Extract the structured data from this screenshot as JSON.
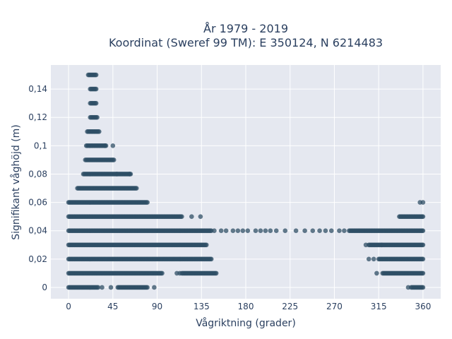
{
  "chart_data": {
    "type": "scatter",
    "title_lines": [
      "År 1979 - 2019",
      "Koordinat (Sweref 99 TM): E 350124, N 6214483"
    ],
    "xlabel": "Vågriktning (grader)",
    "ylabel": "Signifikant våghöjd (m)",
    "xlim": [
      -18,
      378
    ],
    "ylim": [
      -0.008,
      0.157
    ],
    "x_ticks": [
      0,
      45,
      90,
      135,
      180,
      225,
      270,
      315,
      360
    ],
    "x_tick_labels": [
      "0",
      "45",
      "90",
      "135",
      "180",
      "225",
      "270",
      "315",
      "360"
    ],
    "y_ticks": [
      0,
      0.02,
      0.04,
      0.06,
      0.08,
      0.1,
      0.12,
      0.14
    ],
    "y_tick_labels": [
      "0",
      "0,02",
      "0,04",
      "0,06",
      "0,08",
      "0,1",
      "0,12",
      "0,14"
    ],
    "grid": true,
    "marker_color": "#2f4f66",
    "background_color": "#e5e8f0",
    "bands": [
      {
        "y": 0.15,
        "segments": [
          [
            20,
            28
          ]
        ]
      },
      {
        "y": 0.14,
        "segments": [
          [
            22,
            28
          ]
        ]
      },
      {
        "y": 0.13,
        "segments": [
          [
            22,
            28
          ]
        ]
      },
      {
        "y": 0.12,
        "segments": [
          [
            22,
            29
          ]
        ]
      },
      {
        "y": 0.11,
        "segments": [
          [
            19,
            31
          ]
        ]
      },
      {
        "y": 0.1,
        "segments": [
          [
            18,
            38
          ]
        ]
      },
      {
        "y": 0.09,
        "segments": [
          [
            17,
            46
          ]
        ]
      },
      {
        "y": 0.08,
        "segments": [
          [
            15,
            63
          ]
        ]
      },
      {
        "y": 0.07,
        "segments": [
          [
            9,
            69
          ]
        ]
      },
      {
        "y": 0.06,
        "segments": [
          [
            0,
            80
          ]
        ]
      },
      {
        "y": 0.05,
        "segments": [
          [
            0,
            115
          ],
          [
            336,
            360
          ]
        ]
      },
      {
        "y": 0.04,
        "segments": [
          [
            0,
            145
          ],
          [
            285,
            360
          ]
        ]
      },
      {
        "y": 0.03,
        "segments": [
          [
            0,
            140
          ],
          [
            305,
            360
          ]
        ]
      },
      {
        "y": 0.02,
        "segments": [
          [
            0,
            145
          ],
          [
            315,
            360
          ]
        ]
      },
      {
        "y": 0.01,
        "segments": [
          [
            0,
            95
          ],
          [
            115,
            150
          ],
          [
            319,
            360
          ]
        ]
      },
      {
        "y": 0.0,
        "segments": [
          [
            0,
            30
          ],
          [
            50,
            80
          ],
          [
            348,
            360
          ]
        ]
      }
    ],
    "scattered_points": [
      {
        "x": 37,
        "y": 0.1
      },
      {
        "x": 45,
        "y": 0.1
      },
      {
        "x": 49,
        "y": 0.08
      },
      {
        "x": 62,
        "y": 0.08
      },
      {
        "x": 125,
        "y": 0.05
      },
      {
        "x": 134,
        "y": 0.05
      },
      {
        "x": 148,
        "y": 0.04
      },
      {
        "x": 155,
        "y": 0.04
      },
      {
        "x": 160,
        "y": 0.04
      },
      {
        "x": 167,
        "y": 0.04
      },
      {
        "x": 172,
        "y": 0.04
      },
      {
        "x": 177,
        "y": 0.04
      },
      {
        "x": 182,
        "y": 0.04
      },
      {
        "x": 190,
        "y": 0.04
      },
      {
        "x": 195,
        "y": 0.04
      },
      {
        "x": 200,
        "y": 0.04
      },
      {
        "x": 205,
        "y": 0.04
      },
      {
        "x": 211,
        "y": 0.04
      },
      {
        "x": 220,
        "y": 0.04
      },
      {
        "x": 231,
        "y": 0.04
      },
      {
        "x": 240,
        "y": 0.04
      },
      {
        "x": 248,
        "y": 0.04
      },
      {
        "x": 255,
        "y": 0.04
      },
      {
        "x": 261,
        "y": 0.04
      },
      {
        "x": 267,
        "y": 0.04
      },
      {
        "x": 275,
        "y": 0.04
      },
      {
        "x": 280,
        "y": 0.04
      },
      {
        "x": 302,
        "y": 0.03
      },
      {
        "x": 305,
        "y": 0.02
      },
      {
        "x": 310,
        "y": 0.02
      },
      {
        "x": 110,
        "y": 0.01
      },
      {
        "x": 113,
        "y": 0.01
      },
      {
        "x": 313,
        "y": 0.01
      },
      {
        "x": 34,
        "y": 0.0
      },
      {
        "x": 43,
        "y": 0.0
      },
      {
        "x": 87,
        "y": 0.0
      },
      {
        "x": 345,
        "y": 0.0
      },
      {
        "x": 357,
        "y": 0.06
      },
      {
        "x": 360,
        "y": 0.06
      },
      {
        "x": 318,
        "y": 0.03
      }
    ]
  }
}
